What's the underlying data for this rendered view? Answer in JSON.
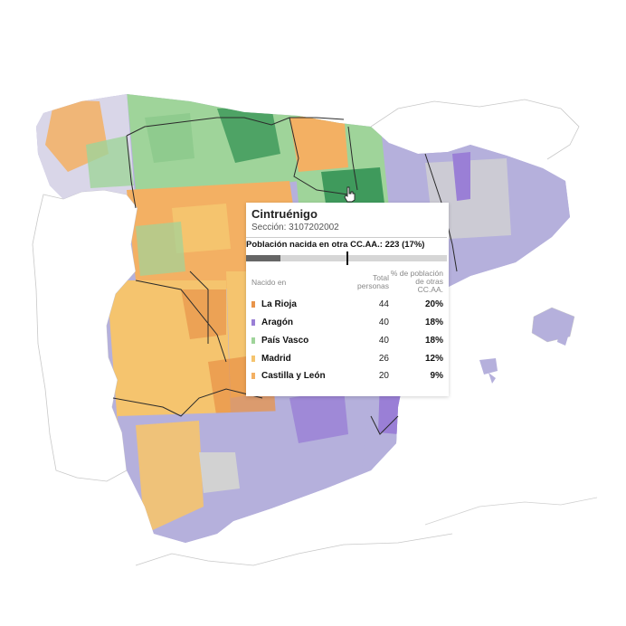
{
  "map": {
    "colors": {
      "sea": "#ffffff",
      "outline": "#b8b8b8",
      "la_rioja": "#e8944a",
      "aragon": "#9a7fd6",
      "pais_vasco": "#9fd49a",
      "madrid": "#f5c46e",
      "castilla_leon": "#f3b063",
      "other_lavender": "#b5b0dc",
      "grey_sections": "#d2d2d2",
      "dark_green": "#3f9a5c",
      "region_border": "#2b2b2b"
    }
  },
  "cursor": {
    "icon": "hand-cursor-icon"
  },
  "tooltip": {
    "title": "Cintruénigo",
    "subtitle": "Sección: 3107202002",
    "summary": "Población nacida en otra CC.AA.: 223 (17%)",
    "bar_fraction": 0.17,
    "header": {
      "born_in": "Nacido en",
      "total_line1": "Total",
      "total_line2": "personas",
      "pct_line1": "% de población",
      "pct_line2": "de otras",
      "pct_line3": "CC.AA."
    },
    "rows": [
      {
        "region": "La Rioja",
        "total": "44",
        "pct": "20%",
        "color": "#e8944a"
      },
      {
        "region": "Aragón",
        "total": "40",
        "pct": "18%",
        "color": "#9a7fd6"
      },
      {
        "region": "País Vasco",
        "total": "40",
        "pct": "18%",
        "color": "#9fd49a"
      },
      {
        "region": "Madrid",
        "total": "26",
        "pct": "12%",
        "color": "#f5c46e"
      },
      {
        "region": "Castilla y León",
        "total": "20",
        "pct": "9%",
        "color": "#f3b063"
      }
    ]
  }
}
